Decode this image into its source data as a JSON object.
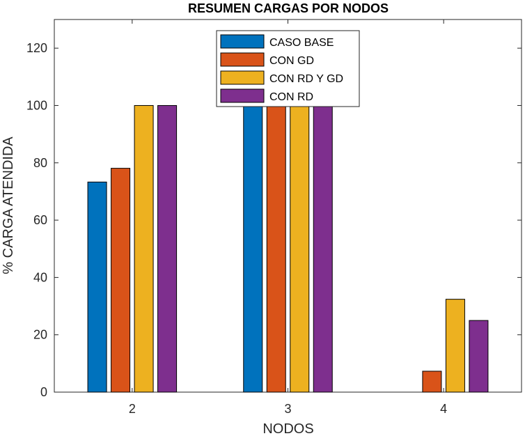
{
  "chart_data": {
    "type": "bar",
    "title": "RESUMEN CARGAS POR NODOS",
    "xlabel": "NODOS",
    "ylabel": "% CARGA ATENDIDA",
    "categories": [
      "2",
      "3",
      "4"
    ],
    "ylim": [
      0,
      130
    ],
    "yticks": [
      0,
      20,
      40,
      60,
      80,
      100,
      120
    ],
    "grid": false,
    "legend_position": "top-center",
    "series": [
      {
        "name": "CASO BASE",
        "color": "#0072BD",
        "values": [
          73.3,
          100,
          0
        ]
      },
      {
        "name": "CON GD",
        "color": "#D95319",
        "values": [
          78.1,
          100,
          7.3
        ]
      },
      {
        "name": "CON RD Y GD",
        "color": "#EDB120",
        "values": [
          100,
          100,
          32.4
        ]
      },
      {
        "name": "CON RD",
        "color": "#7E2F8E",
        "values": [
          100,
          100,
          25
        ]
      }
    ]
  }
}
